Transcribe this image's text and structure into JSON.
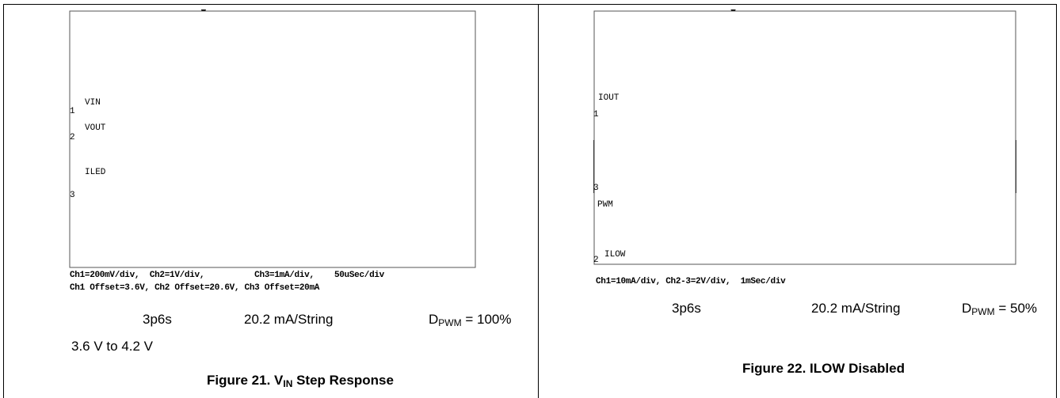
{
  "figures": [
    {
      "scope": {
        "traces": [
          "VIN",
          "VOUT",
          "ILED"
        ],
        "markers": [
          "1",
          "2",
          "3"
        ]
      },
      "settings": [
        "Ch1=200mV/div,  Ch2=1V/div,          Ch3=1mA/div,    50uSec/div",
        "Ch1 Offset=3.6V, Ch2 Offset=20.6V, Ch3 Offset=20mA"
      ],
      "conditions": {
        "config": "3p6s",
        "current": "20.2 mA/String",
        "duty": {
          "base": "D",
          "sub": "PWM",
          "rest": " = 100%"
        },
        "step": "3.6 V to 4.2 V"
      },
      "caption": {
        "prefix": "Figure 21. V",
        "sub": "IN",
        "rest": " Step Response"
      }
    },
    {
      "scope": {
        "traces": [
          "IOUT",
          "PWM",
          "ILOW"
        ],
        "markers": [
          "1",
          "3",
          "2"
        ]
      },
      "settings": [
        "Ch1=10mA/div, Ch2-3=2V/div,  1mSec/div"
      ],
      "conditions": {
        "config": "3p6s",
        "current": "20.2 mA/String",
        "duty": {
          "base": "D",
          "sub": "PWM",
          "rest": " = 50%"
        }
      },
      "caption": {
        "prefix": "Figure 22. ILOW Disabled"
      }
    }
  ]
}
